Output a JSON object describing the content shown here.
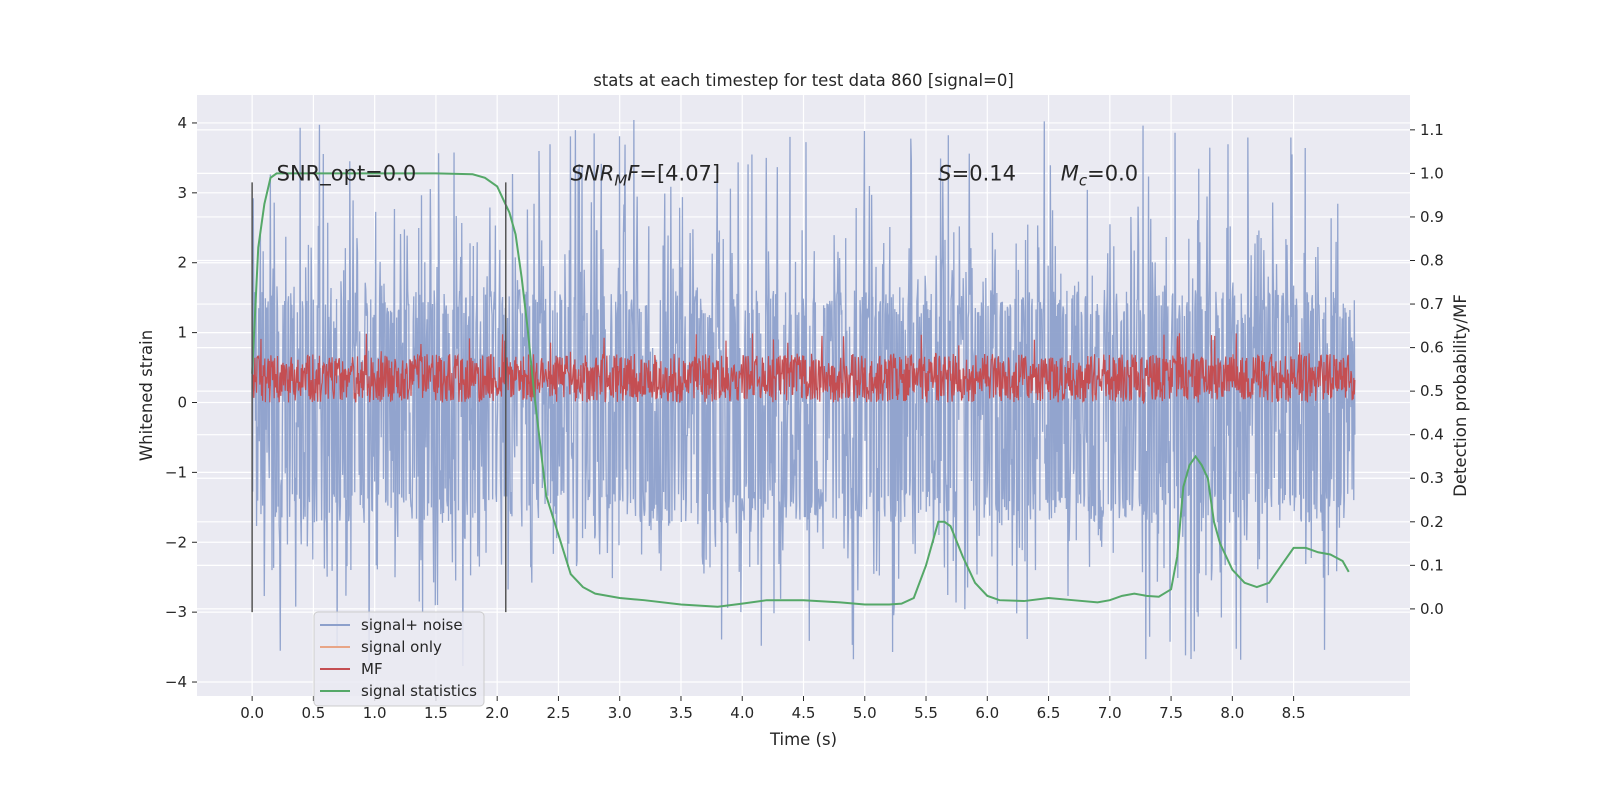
{
  "chart_data": {
    "type": "line",
    "title": "stats at each timestep for test data 860 [signal=0]",
    "xlabel": "Time (s)",
    "ylabel": "Whitened strain",
    "y2label": "Detection probability/MF",
    "xlim": [
      -0.45,
      9.45
    ],
    "ylim": [
      -4.2,
      4.4
    ],
    "y2lim": [
      -0.2,
      1.18
    ],
    "xticks": [
      0.0,
      0.5,
      1.0,
      1.5,
      2.0,
      2.5,
      3.0,
      3.5,
      4.0,
      4.5,
      5.0,
      5.5,
      6.0,
      6.5,
      7.0,
      7.5,
      8.0,
      8.5
    ],
    "xtick_labels": [
      "0.0",
      "0.5",
      "1.0",
      "1.5",
      "2.0",
      "2.5",
      "3.0",
      "3.5",
      "4.0",
      "4.5",
      "5.0",
      "5.5",
      "6.0",
      "6.5",
      "7.0",
      "7.5",
      "8.0",
      "8.5"
    ],
    "yticks": [
      -4,
      -3,
      -2,
      -1,
      0,
      1,
      2,
      3,
      4
    ],
    "ytick_labels": [
      "−4",
      "−3",
      "−2",
      "−1",
      "0",
      "1",
      "2",
      "3",
      "4"
    ],
    "y2ticks": [
      0.0,
      0.1,
      0.2,
      0.3,
      0.4,
      0.5,
      0.6,
      0.7,
      0.8,
      0.9,
      1.0,
      1.1
    ],
    "y2tick_labels": [
      "0.0",
      "0.1",
      "0.2",
      "0.3",
      "0.4",
      "0.5",
      "0.6",
      "0.7",
      "0.8",
      "0.9",
      "1.0",
      "1.1"
    ],
    "vlines": [
      {
        "x": 0.0,
        "y_range": [
          -3.0,
          3.15
        ],
        "color": "#555555"
      },
      {
        "x": 2.07,
        "y_range": [
          -3.0,
          3.15
        ],
        "color": "#555555"
      }
    ],
    "annotations": [
      {
        "text": "SNR_opt=0.0",
        "x": 0.2,
        "y": 3.18
      },
      {
        "text": "SNR_MF=[4.07]",
        "x": 2.6,
        "y": 3.18
      },
      {
        "text": "S=0.14",
        "x": 5.6,
        "y": 3.18
      },
      {
        "text": "M_c=0.0",
        "x": 6.6,
        "y": 3.18
      }
    ],
    "series": [
      {
        "name": "signal+ noise",
        "axis": "left",
        "color": "#8da0cb",
        "description": "dense whitened noise trace, t from 0.0 to 9.0 s",
        "t_range": [
          0.0,
          9.0
        ],
        "samples": 2000,
        "core_band": [
          -1.5,
          1.4
        ],
        "peak_range": [
          -3.8,
          4.05
        ],
        "seed": 860
      },
      {
        "name": "signal only",
        "axis": "left",
        "color": "#e8a586",
        "values": []
      },
      {
        "name": "MF",
        "axis": "left",
        "color": "#c44e52",
        "description": "matched filter output, noisy trace mostly between 0.0 and 0.7",
        "t_range": [
          0.0,
          9.0
        ],
        "samples": 2000,
        "band": [
          0.0,
          0.7
        ],
        "peak_max": 1.0,
        "seed": 4071
      },
      {
        "name": "signal statistics",
        "axis": "right",
        "color": "#55a868",
        "x": [
          0.0,
          0.05,
          0.1,
          0.15,
          0.2,
          0.3,
          0.5,
          0.8,
          1.0,
          1.5,
          1.8,
          1.9,
          2.0,
          2.05,
          2.1,
          2.15,
          2.2,
          2.25,
          2.3,
          2.35,
          2.4,
          2.5,
          2.6,
          2.7,
          2.8,
          3.0,
          3.2,
          3.5,
          3.8,
          4.0,
          4.2,
          4.5,
          4.8,
          5.0,
          5.2,
          5.3,
          5.4,
          5.5,
          5.6,
          5.65,
          5.7,
          5.8,
          5.9,
          6.0,
          6.1,
          6.3,
          6.5,
          6.7,
          6.9,
          7.0,
          7.1,
          7.2,
          7.3,
          7.4,
          7.5,
          7.55,
          7.6,
          7.65,
          7.7,
          7.75,
          7.8,
          7.85,
          7.9,
          8.0,
          8.1,
          8.2,
          8.3,
          8.4,
          8.5,
          8.6,
          8.7,
          8.8,
          8.9,
          8.95
        ],
        "values": [
          0.54,
          0.83,
          0.93,
          0.99,
          1.0,
          1.0,
          1.0,
          1.0,
          1.0,
          1.0,
          0.998,
          0.99,
          0.97,
          0.94,
          0.91,
          0.86,
          0.76,
          0.64,
          0.5,
          0.38,
          0.26,
          0.17,
          0.08,
          0.05,
          0.035,
          0.025,
          0.02,
          0.01,
          0.005,
          0.012,
          0.02,
          0.02,
          0.015,
          0.01,
          0.01,
          0.012,
          0.025,
          0.1,
          0.2,
          0.2,
          0.19,
          0.12,
          0.06,
          0.03,
          0.02,
          0.018,
          0.025,
          0.02,
          0.015,
          0.02,
          0.03,
          0.035,
          0.03,
          0.028,
          0.045,
          0.12,
          0.28,
          0.33,
          0.35,
          0.33,
          0.3,
          0.2,
          0.15,
          0.09,
          0.06,
          0.05,
          0.06,
          0.1,
          0.14,
          0.14,
          0.13,
          0.125,
          0.11,
          0.085
        ]
      }
    ],
    "legend": {
      "position": "lower-left",
      "entries": [
        {
          "label": "signal+ noise",
          "color": "#8da0cb"
        },
        {
          "label": "signal only",
          "color": "#e8a586"
        },
        {
          "label": "MF",
          "color": "#c44e52"
        },
        {
          "label": "signal statistics",
          "color": "#55a868"
        }
      ]
    },
    "grid": true,
    "background": "#eaeaf2"
  }
}
